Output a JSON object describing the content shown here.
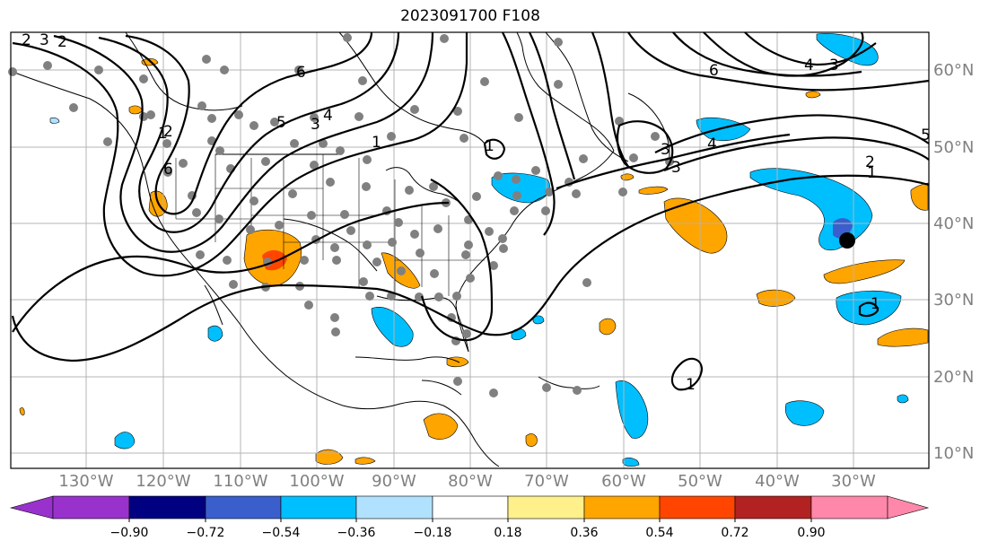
{
  "title": "2023091700 F108",
  "lon_labels": [
    "130°W",
    "120°W",
    "110°W",
    "100°W",
    "90°W",
    "80°W",
    "70°W",
    "60°W",
    "50°W",
    "40°W",
    "30°W"
  ],
  "lat_labels": [
    "60°N",
    "50°N",
    "40°N",
    "30°N",
    "20°N",
    "10°N"
  ],
  "colorbar": {
    "ticks": [
      "−0.90",
      "−0.72",
      "−0.54",
      "−0.36",
      "−0.18",
      "0.18",
      "0.36",
      "0.54",
      "0.72",
      "0.90"
    ],
    "colors": [
      "#9932cc",
      "#000080",
      "#3a5fcd",
      "#00bfff",
      "#b0e2ff",
      "#ffffff",
      "#fff08c",
      "#ffa500",
      "#ff4500",
      "#b22222",
      "#ff88aa"
    ]
  },
  "contour_labels": [
    "2",
    "3",
    "2",
    "6",
    "5",
    "3",
    "4",
    "6",
    "1",
    "1",
    "5",
    "2",
    "1",
    "4",
    "3",
    "3",
    "1",
    "1",
    "1",
    "6",
    "4",
    "3",
    "2"
  ],
  "colors": {
    "positive_fill": "#ffa500",
    "positive_strong": "#ff4500",
    "negative_fill": "#00bfff",
    "negative_weak": "#b0e2ff",
    "negative_strong": "#3a5fcd",
    "station_dot": "#808080",
    "grid": "#b4b4b4"
  }
}
